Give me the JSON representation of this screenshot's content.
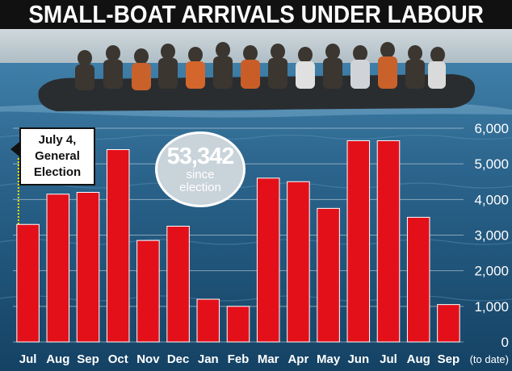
{
  "headline": "SMALL-BOAT ARRIVALS UNDER LABOUR",
  "callout": {
    "lines": [
      "July 4,",
      "General",
      "Election"
    ]
  },
  "badge": {
    "number": "53,342",
    "lines": [
      "since",
      "election"
    ]
  },
  "colors": {
    "bar": "#e3101a",
    "banner": "#111111",
    "sea_top": "#3f7fa8",
    "sea_bottom": "#144264",
    "badge": "#c9d3da"
  },
  "chart_data": {
    "type": "bar",
    "categories": [
      "Jul",
      "Aug",
      "Sep",
      "Oct",
      "Nov",
      "Dec",
      "Jan",
      "Feb",
      "Mar",
      "Apr",
      "May",
      "Jun",
      "Jul",
      "Aug",
      "Sep"
    ],
    "values": [
      3300,
      4150,
      4200,
      5400,
      2850,
      3250,
      1200,
      1000,
      4600,
      4500,
      3750,
      5650,
      5650,
      3500,
      1050
    ],
    "last_category_note": "(to date)",
    "title": "SMALL-BOAT ARRIVALS UNDER LABOUR",
    "xlabel": "",
    "ylabel": "",
    "ylim": [
      0,
      6000
    ],
    "yticks": [
      0,
      1000,
      2000,
      3000,
      4000,
      5000,
      6000
    ],
    "ytick_labels": [
      "0",
      "1,000",
      "2,000",
      "3,000",
      "4,000",
      "5,000",
      "6,000"
    ],
    "y_axis_side": "right",
    "grid": true,
    "annotations": [
      "July 4, General Election",
      "53,342 since election"
    ]
  }
}
